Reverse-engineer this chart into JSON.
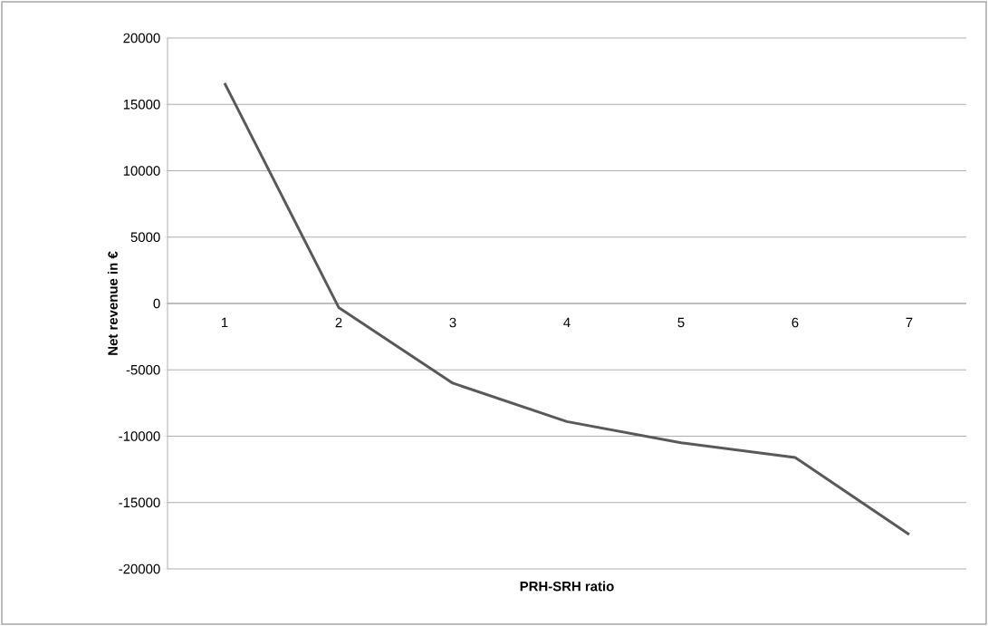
{
  "chart_data": {
    "type": "line",
    "xlabel": "PRH-SRH ratio",
    "ylabel": "Net revenue in €",
    "categories": [
      "1",
      "2",
      "3",
      "4",
      "5",
      "6",
      "7"
    ],
    "series": [
      {
        "color": "#595959",
        "values": [
          16600,
          -300,
          -6000,
          -8900,
          -10500,
          -11600,
          -17400
        ]
      }
    ],
    "ylim": [
      -20000,
      20000
    ],
    "yticks": [
      -20000,
      -15000,
      -10000,
      -5000,
      0,
      5000,
      10000,
      15000,
      20000
    ],
    "grid": "y",
    "marker": "none",
    "line_style": "solid"
  }
}
